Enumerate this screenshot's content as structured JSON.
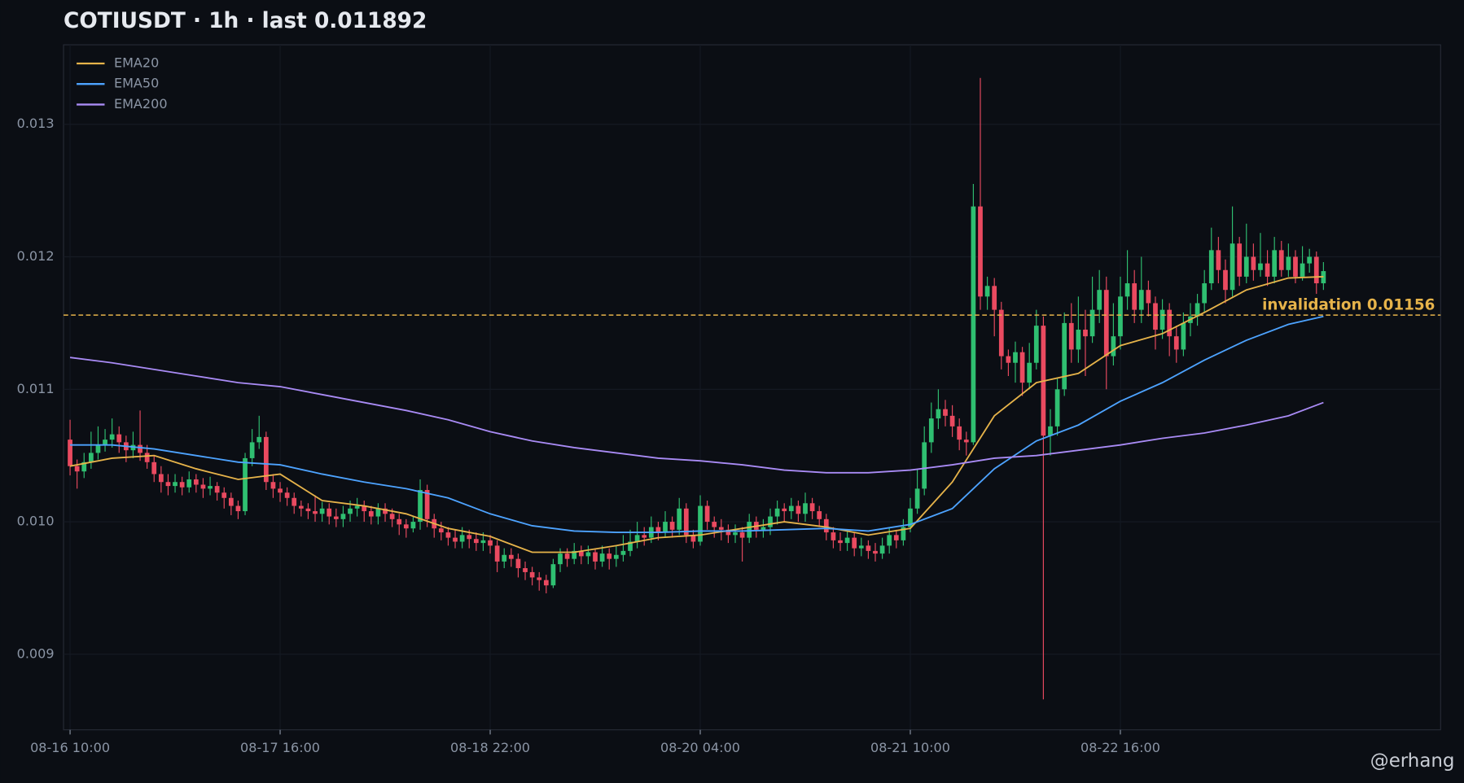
{
  "chart_data": {
    "type": "candlestick",
    "title": "COTIUSDT · 1h · last 0.011892",
    "watermark": "@erhang",
    "x": [
      "08-16 10:00",
      "08-16 11:00",
      "08-16 12:00",
      "08-16 13:00",
      "08-16 14:00",
      "08-16 15:00",
      "08-16 16:00",
      "08-16 17:00",
      "08-16 18:00",
      "08-16 19:00",
      "08-16 20:00",
      "08-16 21:00",
      "08-16 22:00",
      "08-16 23:00",
      "08-17 00:00",
      "08-17 01:00",
      "08-17 02:00",
      "08-17 03:00",
      "08-17 04:00",
      "08-17 05:00",
      "08-17 06:00",
      "08-17 07:00",
      "08-17 08:00",
      "08-17 09:00",
      "08-17 10:00",
      "08-17 11:00",
      "08-17 12:00",
      "08-17 13:00",
      "08-17 14:00",
      "08-17 15:00",
      "08-17 16:00",
      "08-17 17:00",
      "08-17 18:00",
      "08-17 19:00",
      "08-17 20:00",
      "08-17 21:00",
      "08-17 22:00",
      "08-17 23:00",
      "08-18 00:00",
      "08-18 01:00",
      "08-18 02:00",
      "08-18 03:00",
      "08-18 04:00",
      "08-18 05:00",
      "08-18 06:00",
      "08-18 07:00",
      "08-18 08:00",
      "08-18 09:00",
      "08-18 10:00",
      "08-18 11:00",
      "08-18 12:00",
      "08-18 13:00",
      "08-18 14:00",
      "08-18 15:00",
      "08-18 16:00",
      "08-18 17:00",
      "08-18 18:00",
      "08-18 19:00",
      "08-18 20:00",
      "08-18 21:00",
      "08-18 22:00",
      "08-18 23:00",
      "08-19 00:00",
      "08-19 01:00",
      "08-19 02:00",
      "08-19 03:00",
      "08-19 04:00",
      "08-19 05:00",
      "08-19 06:00",
      "08-19 07:00",
      "08-19 08:00",
      "08-19 09:00",
      "08-19 10:00",
      "08-19 11:00",
      "08-19 12:00",
      "08-19 13:00",
      "08-19 14:00",
      "08-19 15:00",
      "08-19 16:00",
      "08-19 17:00",
      "08-19 18:00",
      "08-19 19:00",
      "08-19 20:00",
      "08-19 21:00",
      "08-19 22:00",
      "08-19 23:00",
      "08-20 00:00",
      "08-20 01:00",
      "08-20 02:00",
      "08-20 03:00",
      "08-20 04:00",
      "08-20 05:00",
      "08-20 06:00",
      "08-20 07:00",
      "08-20 08:00",
      "08-20 09:00",
      "08-20 10:00",
      "08-20 11:00",
      "08-20 12:00",
      "08-20 13:00",
      "08-20 14:00",
      "08-20 15:00",
      "08-20 16:00",
      "08-20 17:00",
      "08-20 18:00",
      "08-20 19:00",
      "08-20 20:00",
      "08-20 21:00",
      "08-20 22:00",
      "08-20 23:00",
      "08-21 00:00",
      "08-21 01:00",
      "08-21 02:00",
      "08-21 03:00",
      "08-21 04:00",
      "08-21 05:00",
      "08-21 06:00",
      "08-21 07:00",
      "08-21 08:00",
      "08-21 09:00",
      "08-21 10:00",
      "08-21 11:00",
      "08-21 12:00",
      "08-21 13:00",
      "08-21 14:00",
      "08-21 15:00",
      "08-21 16:00",
      "08-21 17:00",
      "08-21 18:00",
      "08-21 19:00",
      "08-21 20:00",
      "08-21 21:00",
      "08-21 22:00",
      "08-21 23:00",
      "08-22 00:00",
      "08-22 01:00",
      "08-22 02:00",
      "08-22 03:00",
      "08-22 04:00",
      "08-22 05:00",
      "08-22 06:00",
      "08-22 07:00",
      "08-22 08:00",
      "08-22 09:00",
      "08-22 10:00",
      "08-22 11:00",
      "08-22 12:00",
      "08-22 13:00",
      "08-22 14:00",
      "08-22 15:00",
      "08-22 16:00",
      "08-22 17:00",
      "08-22 18:00",
      "08-22 19:00",
      "08-22 20:00",
      "08-22 21:00",
      "08-22 22:00",
      "08-22 23:00",
      "08-23 00:00",
      "08-23 01:00",
      "08-23 02:00",
      "08-23 03:00",
      "08-23 04:00",
      "08-23 05:00",
      "08-23 06:00",
      "08-23 07:00",
      "08-23 08:00",
      "08-23 09:00",
      "08-23 10:00",
      "08-23 11:00",
      "08-23 12:00",
      "08-23 13:00",
      "08-23 14:00",
      "08-23 15:00",
      "08-23 16:00",
      "08-23 17:00",
      "08-23 18:00",
      "08-23 19:00",
      "08-23 20:00",
      "08-23 21:00"
    ],
    "open": [
      0.01062,
      0.01042,
      0.01038,
      0.01045,
      0.01052,
      0.01058,
      0.01062,
      0.01066,
      0.0106,
      0.01054,
      0.01058,
      0.01052,
      0.01045,
      0.01036,
      0.0103,
      0.01027,
      0.0103,
      0.01026,
      0.01032,
      0.01028,
      0.01025,
      0.01027,
      0.01022,
      0.01018,
      0.01012,
      0.01008,
      0.01048,
      0.0106,
      0.01064,
      0.0103,
      0.01025,
      0.01022,
      0.01018,
      0.01012,
      0.0101,
      0.01008,
      0.01006,
      0.0101,
      0.01004,
      0.01002,
      0.01006,
      0.0101,
      0.01012,
      0.01008,
      0.01004,
      0.0101,
      0.01006,
      0.01002,
      0.00998,
      0.00995,
      0.01,
      0.01024,
      0.01002,
      0.00995,
      0.00992,
      0.00988,
      0.00985,
      0.0099,
      0.00987,
      0.00984,
      0.00986,
      0.00982,
      0.0097,
      0.00975,
      0.00972,
      0.00965,
      0.00962,
      0.00958,
      0.00956,
      0.00952,
      0.00968,
      0.00976,
      0.00972,
      0.00978,
      0.00974,
      0.00977,
      0.0097,
      0.00976,
      0.00972,
      0.00975,
      0.00978,
      0.00985,
      0.0099,
      0.00988,
      0.00996,
      0.00992,
      0.01,
      0.00994,
      0.0101,
      0.0099,
      0.00985,
      0.01012,
      0.01,
      0.00996,
      0.00994,
      0.0099,
      0.00992,
      0.00988,
      0.01,
      0.00994,
      0.00996,
      0.01004,
      0.0101,
      0.01008,
      0.01012,
      0.01006,
      0.01014,
      0.01008,
      0.01002,
      0.00992,
      0.00986,
      0.00984,
      0.00988,
      0.0098,
      0.00982,
      0.00978,
      0.00976,
      0.00982,
      0.0099,
      0.00986,
      0.00996,
      0.0101,
      0.01025,
      0.0106,
      0.01078,
      0.01085,
      0.0108,
      0.01072,
      0.01062,
      0.0106,
      0.01238,
      0.0117,
      0.01178,
      0.0116,
      0.01125,
      0.0112,
      0.01128,
      0.01105,
      0.0112,
      0.01148,
      0.01065,
      0.01072,
      0.011,
      0.0115,
      0.0113,
      0.01145,
      0.0114,
      0.0116,
      0.01175,
      0.01125,
      0.0114,
      0.0117,
      0.0118,
      0.0116,
      0.01175,
      0.01165,
      0.01145,
      0.0116,
      0.0114,
      0.0113,
      0.0115,
      0.01155,
      0.01165,
      0.0118,
      0.01205,
      0.0119,
      0.01175,
      0.0121,
      0.01185,
      0.012,
      0.0119,
      0.01195,
      0.01185,
      0.01205,
      0.0119,
      0.012,
      0.01185,
      0.01195,
      0.012,
      0.0118
    ],
    "high": [
      0.01077,
      0.01047,
      0.01052,
      0.01068,
      0.01072,
      0.0107,
      0.01078,
      0.01072,
      0.01065,
      0.01068,
      0.01084,
      0.01058,
      0.0105,
      0.01042,
      0.01036,
      0.01036,
      0.01034,
      0.01038,
      0.01036,
      0.01033,
      0.01034,
      0.0103,
      0.01026,
      0.01022,
      0.01016,
      0.01052,
      0.0107,
      0.0108,
      0.01068,
      0.01036,
      0.0103,
      0.01026,
      0.01022,
      0.01016,
      0.01014,
      0.0102,
      0.01015,
      0.01014,
      0.0101,
      0.01012,
      0.01016,
      0.01018,
      0.01016,
      0.01012,
      0.01014,
      0.01014,
      0.0101,
      0.01006,
      0.01002,
      0.01004,
      0.01032,
      0.01028,
      0.01006,
      0.01,
      0.00996,
      0.00994,
      0.00996,
      0.00994,
      0.00992,
      0.00992,
      0.0099,
      0.00986,
      0.0098,
      0.0098,
      0.00976,
      0.0097,
      0.00966,
      0.00962,
      0.0096,
      0.00972,
      0.0098,
      0.0098,
      0.00984,
      0.00982,
      0.00982,
      0.0098,
      0.00982,
      0.0098,
      0.00982,
      0.0099,
      0.00994,
      0.01,
      0.00996,
      0.01004,
      0.01,
      0.01008,
      0.01004,
      0.01018,
      0.01014,
      0.00994,
      0.0102,
      0.01016,
      0.01004,
      0.01002,
      0.00998,
      0.00998,
      0.00996,
      0.01006,
      0.01004,
      0.01002,
      0.0101,
      0.01016,
      0.01014,
      0.01018,
      0.01016,
      0.01022,
      0.01018,
      0.01012,
      0.01006,
      0.00996,
      0.00992,
      0.00994,
      0.00992,
      0.00988,
      0.00986,
      0.00984,
      0.00988,
      0.00996,
      0.00994,
      0.01002,
      0.01018,
      0.0104,
      0.01072,
      0.0109,
      0.011,
      0.01092,
      0.01088,
      0.01078,
      0.01068,
      0.01255,
      0.01335,
      0.01185,
      0.01184,
      0.01166,
      0.0113,
      0.01136,
      0.01132,
      0.01135,
      0.0116,
      0.01155,
      0.01085,
      0.01108,
      0.01158,
      0.01165,
      0.0117,
      0.0116,
      0.01185,
      0.0119,
      0.01185,
      0.01165,
      0.01185,
      0.01205,
      0.0119,
      0.012,
      0.01182,
      0.0117,
      0.01168,
      0.01165,
      0.01148,
      0.01158,
      0.01165,
      0.01172,
      0.0119,
      0.01222,
      0.01215,
      0.01198,
      0.01238,
      0.01215,
      0.01225,
      0.0121,
      0.01218,
      0.01205,
      0.01215,
      0.01212,
      0.0121,
      0.01205,
      0.01208,
      0.01206,
      0.01204,
      0.01196
    ],
    "low": [
      0.01035,
      0.01025,
      0.01033,
      0.0104,
      0.01047,
      0.01053,
      0.01056,
      0.01052,
      0.01045,
      0.01048,
      0.01046,
      0.0104,
      0.0103,
      0.01022,
      0.0102,
      0.01022,
      0.0102,
      0.01022,
      0.01022,
      0.01018,
      0.0102,
      0.01016,
      0.0101,
      0.01005,
      0.01002,
      0.01005,
      0.01042,
      0.01055,
      0.01024,
      0.01018,
      0.01015,
      0.01012,
      0.01006,
      0.01004,
      0.01002,
      0.01,
      0.01,
      0.00998,
      0.00996,
      0.00996,
      0.01,
      0.01004,
      0.01,
      0.00998,
      0.00998,
      0.01,
      0.00996,
      0.0099,
      0.00988,
      0.00992,
      0.00994,
      0.00996,
      0.00988,
      0.00986,
      0.00982,
      0.0098,
      0.0098,
      0.0098,
      0.00978,
      0.00978,
      0.00976,
      0.00962,
      0.00965,
      0.00966,
      0.00958,
      0.00956,
      0.00952,
      0.00948,
      0.00946,
      0.0095,
      0.00962,
      0.00966,
      0.00968,
      0.00968,
      0.00968,
      0.00964,
      0.00966,
      0.00964,
      0.00966,
      0.0097,
      0.00974,
      0.0098,
      0.00982,
      0.00984,
      0.00986,
      0.00988,
      0.00988,
      0.0099,
      0.00984,
      0.0098,
      0.00982,
      0.00994,
      0.00988,
      0.00986,
      0.00984,
      0.00984,
      0.0097,
      0.00984,
      0.00988,
      0.00988,
      0.0099,
      0.00998,
      0.01,
      0.01002,
      0.01,
      0.01,
      0.01002,
      0.00996,
      0.00986,
      0.0098,
      0.00978,
      0.00978,
      0.00974,
      0.00974,
      0.00972,
      0.0097,
      0.00972,
      0.00976,
      0.0098,
      0.00982,
      0.00992,
      0.01006,
      0.0102,
      0.01052,
      0.0107,
      0.01072,
      0.01064,
      0.01054,
      0.0105,
      0.01058,
      0.0116,
      0.0116,
      0.0114,
      0.01115,
      0.0111,
      0.01105,
      0.01095,
      0.011,
      0.01115,
      0.00866,
      0.0105,
      0.01065,
      0.01095,
      0.0112,
      0.0112,
      0.0111,
      0.01135,
      0.0115,
      0.011,
      0.01118,
      0.0113,
      0.0116,
      0.0115,
      0.0115,
      0.01155,
      0.0113,
      0.01138,
      0.01125,
      0.0112,
      0.01125,
      0.0114,
      0.01148,
      0.01158,
      0.01175,
      0.0118,
      0.01165,
      0.0117,
      0.01178,
      0.0118,
      0.01182,
      0.01185,
      0.01178,
      0.0118,
      0.01185,
      0.01185,
      0.0118,
      0.01182,
      0.01188,
      0.01172,
      0.01175
    ],
    "close": [
      0.01042,
      0.01038,
      0.01045,
      0.01052,
      0.01058,
      0.01062,
      0.01066,
      0.0106,
      0.01054,
      0.01058,
      0.01052,
      0.01045,
      0.01036,
      0.0103,
      0.01027,
      0.0103,
      0.01026,
      0.01032,
      0.01028,
      0.01025,
      0.01027,
      0.01022,
      0.01018,
      0.01012,
      0.01008,
      0.01048,
      0.0106,
      0.01064,
      0.0103,
      0.01025,
      0.01022,
      0.01018,
      0.01012,
      0.0101,
      0.01008,
      0.01006,
      0.0101,
      0.01004,
      0.01002,
      0.01006,
      0.0101,
      0.01012,
      0.01008,
      0.01004,
      0.0101,
      0.01006,
      0.01002,
      0.00998,
      0.00995,
      0.01,
      0.01024,
      0.01002,
      0.00995,
      0.00992,
      0.00988,
      0.00985,
      0.0099,
      0.00987,
      0.00984,
      0.00986,
      0.00982,
      0.0097,
      0.00975,
      0.00972,
      0.00965,
      0.00962,
      0.00958,
      0.00956,
      0.00952,
      0.00968,
      0.00976,
      0.00972,
      0.00978,
      0.00974,
      0.00977,
      0.0097,
      0.00976,
      0.00972,
      0.00975,
      0.00978,
      0.00985,
      0.0099,
      0.00988,
      0.00996,
      0.00992,
      0.01,
      0.00994,
      0.0101,
      0.0099,
      0.00985,
      0.01012,
      0.01,
      0.00996,
      0.00994,
      0.0099,
      0.00992,
      0.00988,
      0.01,
      0.00994,
      0.00996,
      0.01004,
      0.0101,
      0.01008,
      0.01012,
      0.01006,
      0.01014,
      0.01008,
      0.01002,
      0.00992,
      0.00986,
      0.00984,
      0.00988,
      0.0098,
      0.00982,
      0.00978,
      0.00976,
      0.00982,
      0.0099,
      0.00986,
      0.00996,
      0.0101,
      0.01025,
      0.0106,
      0.01078,
      0.01085,
      0.0108,
      0.01072,
      0.01062,
      0.0106,
      0.01238,
      0.0117,
      0.01178,
      0.0116,
      0.01125,
      0.0112,
      0.01128,
      0.01105,
      0.0112,
      0.01148,
      0.01065,
      0.01072,
      0.011,
      0.0115,
      0.0113,
      0.01145,
      0.0114,
      0.0116,
      0.01175,
      0.01125,
      0.0114,
      0.0117,
      0.0118,
      0.0116,
      0.01175,
      0.01165,
      0.01145,
      0.0116,
      0.0114,
      0.0113,
      0.0115,
      0.01155,
      0.01165,
      0.0118,
      0.01205,
      0.0119,
      0.01175,
      0.0121,
      0.01185,
      0.012,
      0.0119,
      0.01195,
      0.01185,
      0.01205,
      0.0119,
      0.012,
      0.01185,
      0.01195,
      0.012,
      0.0118,
      0.011892
    ],
    "up_color": "#2fbf71",
    "down_color": "#ea4a60",
    "series": [
      {
        "name": "EMA20",
        "color": "#e6b34a",
        "x": [
          "08-16 10:00",
          "08-16 16:00",
          "08-16 22:00",
          "08-17 04:00",
          "08-17 10:00",
          "08-17 16:00",
          "08-17 22:00",
          "08-18 04:00",
          "08-18 10:00",
          "08-18 16:00",
          "08-18 22:00",
          "08-19 04:00",
          "08-19 10:00",
          "08-19 16:00",
          "08-19 22:00",
          "08-20 04:00",
          "08-20 10:00",
          "08-20 16:00",
          "08-20 22:00",
          "08-21 04:00",
          "08-21 10:00",
          "08-21 16:00",
          "08-21 22:00",
          "08-22 04:00",
          "08-22 10:00",
          "08-22 16:00",
          "08-22 22:00",
          "08-23 04:00",
          "08-23 10:00",
          "08-23 16:00",
          "08-23 21:00"
        ],
        "values": [
          0.01042,
          0.01048,
          0.0105,
          0.0104,
          0.01032,
          0.01036,
          0.01016,
          0.01012,
          0.01006,
          0.00995,
          0.00989,
          0.00977,
          0.00977,
          0.00982,
          0.00988,
          0.0099,
          0.00995,
          0.01,
          0.00996,
          0.0099,
          0.00995,
          0.0103,
          0.0108,
          0.01105,
          0.01112,
          0.01133,
          0.01142,
          0.01158,
          0.01175,
          0.01184,
          0.01185
        ]
      },
      {
        "name": "EMA50",
        "color": "#4da3ff",
        "x": [
          "08-16 10:00",
          "08-16 16:00",
          "08-16 22:00",
          "08-17 04:00",
          "08-17 10:00",
          "08-17 16:00",
          "08-17 22:00",
          "08-18 04:00",
          "08-18 10:00",
          "08-18 16:00",
          "08-18 22:00",
          "08-19 04:00",
          "08-19 10:00",
          "08-19 16:00",
          "08-19 22:00",
          "08-20 04:00",
          "08-20 10:00",
          "08-20 16:00",
          "08-20 22:00",
          "08-21 04:00",
          "08-21 10:00",
          "08-21 16:00",
          "08-21 22:00",
          "08-22 04:00",
          "08-22 10:00",
          "08-22 16:00",
          "08-22 22:00",
          "08-23 04:00",
          "08-23 10:00",
          "08-23 16:00",
          "08-23 21:00"
        ],
        "values": [
          0.01058,
          0.01058,
          0.01055,
          0.0105,
          0.01045,
          0.01043,
          0.01036,
          0.0103,
          0.01025,
          0.01018,
          0.01006,
          0.00997,
          0.00993,
          0.00992,
          0.00992,
          0.00993,
          0.00993,
          0.00994,
          0.00995,
          0.00993,
          0.00998,
          0.0101,
          0.0104,
          0.01061,
          0.01073,
          0.01091,
          0.01105,
          0.01122,
          0.01137,
          0.01149,
          0.01155
        ]
      },
      {
        "name": "EMA200",
        "color": "#a98bf5",
        "x": [
          "08-16 10:00",
          "08-16 16:00",
          "08-16 22:00",
          "08-17 04:00",
          "08-17 10:00",
          "08-17 16:00",
          "08-17 22:00",
          "08-18 04:00",
          "08-18 10:00",
          "08-18 16:00",
          "08-18 22:00",
          "08-19 04:00",
          "08-19 10:00",
          "08-19 16:00",
          "08-19 22:00",
          "08-20 04:00",
          "08-20 10:00",
          "08-20 16:00",
          "08-20 22:00",
          "08-21 04:00",
          "08-21 10:00",
          "08-21 16:00",
          "08-21 22:00",
          "08-22 04:00",
          "08-22 10:00",
          "08-22 16:00",
          "08-22 22:00",
          "08-23 04:00",
          "08-23 10:00",
          "08-23 16:00",
          "08-23 21:00"
        ],
        "values": [
          0.01124,
          0.0112,
          0.01115,
          0.0111,
          0.01105,
          0.01102,
          0.01096,
          0.0109,
          0.01084,
          0.01077,
          0.01068,
          0.01061,
          0.01056,
          0.01052,
          0.01048,
          0.01046,
          0.01043,
          0.01039,
          0.01037,
          0.01037,
          0.01039,
          0.01043,
          0.01048,
          0.0105,
          0.01054,
          0.01058,
          0.01063,
          0.01067,
          0.01073,
          0.0108,
          0.0109
        ]
      }
    ],
    "hline": {
      "value": 0.01156,
      "label": "invalidation 0.01156",
      "color": "#e6b34a"
    },
    "ylim": [
      0.00843,
      0.0136
    ],
    "yticks": [
      0.009,
      {
        "value": 0.01,
        "label": "0.010"
      },
      0.011,
      0.012,
      0.013
    ],
    "grid": true,
    "legend": "upper-left"
  }
}
